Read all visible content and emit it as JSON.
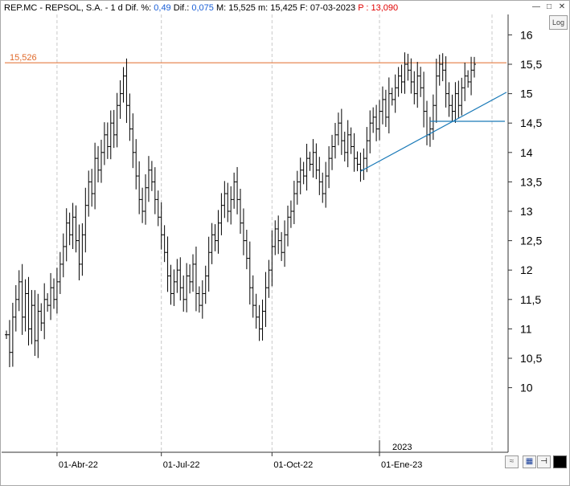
{
  "header": {
    "symbol": "REP.MC - REPSOL, S.A. - 1 d",
    "dif_pct_label": "Dif. %:",
    "dif_pct_value": "0,49",
    "dif_label": "Dif.:",
    "dif_value": "0,075",
    "max_label": "M:",
    "max_value": "15,525",
    "min_label": "m:",
    "min_value": "15,425",
    "date_label": "F:",
    "date_value": "07-03-2023",
    "p_label": "P :",
    "p_value": "13,090"
  },
  "controls": {
    "log_label": "Log",
    "minimize_icon": "minimize-icon",
    "maximize_icon": "maximize-icon",
    "close_icon": "close-icon",
    "restore_icon": "restore-icon",
    "save_icon": "save-icon",
    "pin_icon": "pin-icon",
    "color_icon": "color-swatch-icon"
  },
  "level_label": "15,526",
  "year_marker": "2023",
  "colors": {
    "bars": "#000000",
    "level_line": "#e06a2a",
    "trend_line": "#1a7ab8",
    "header_value": "#1a5fd6",
    "header_p": "#e00000"
  },
  "chart_data": {
    "type": "bar",
    "style": "ohlc",
    "title": "REP.MC - REPSOL, S.A. - 1 d",
    "y_range": [
      9.8,
      16.4
    ],
    "y_ticks": [
      "16",
      "15,5",
      "15",
      "14,5",
      "14",
      "13,5",
      "13",
      "12,5",
      "12",
      "11,5",
      "11",
      "10,5",
      "10"
    ],
    "y_tick_values": [
      16,
      15.5,
      15,
      14.5,
      14,
      13.5,
      13,
      12.5,
      12,
      11.5,
      11,
      10.5,
      10
    ],
    "x_tick_labels": [
      "01-Abr-22",
      "01-Jul-22",
      "01-Oct-22",
      "01-Ene-23"
    ],
    "x_tick_bar_index": [
      16,
      49,
      84,
      118
    ],
    "grid": "vertical-dashed",
    "resistance_level": 15.526,
    "support_segment": {
      "from_bar": 134,
      "to_bar": 154,
      "y": 14.53
    },
    "trendline": {
      "from_bar": 112,
      "from_y": 13.68,
      "to_bar": 155,
      "to_y": 14.75
    },
    "close": [
      10.9,
      10.6,
      11.2,
      11.5,
      11.8,
      11.2,
      11.6,
      11.0,
      11.4,
      10.8,
      11.3,
      11.1,
      11.5,
      11.4,
      11.7,
      11.5,
      11.8,
      12.1,
      12.4,
      12.8,
      12.6,
      12.9,
      12.5,
      12.1,
      12.6,
      13.1,
      13.5,
      13.3,
      13.9,
      13.7,
      14.0,
      14.3,
      14.1,
      14.5,
      14.3,
      14.8,
      15.0,
      15.3,
      14.8,
      14.4,
      14.0,
      13.6,
      13.2,
      13.0,
      13.4,
      13.7,
      13.5,
      13.2,
      12.9,
      12.6,
      12.3,
      11.9,
      11.6,
      11.8,
      12.0,
      11.7,
      11.5,
      11.9,
      11.8,
      12.1,
      11.6,
      11.4,
      11.6,
      11.9,
      12.3,
      12.6,
      12.5,
      12.8,
      13.1,
      13.3,
      13.0,
      13.2,
      13.5,
      13.2,
      12.8,
      12.5,
      12.2,
      11.7,
      11.4,
      11.2,
      11.0,
      11.3,
      11.7,
      12.0,
      12.4,
      12.7,
      12.5,
      12.3,
      12.6,
      12.9,
      13.0,
      13.3,
      13.5,
      13.7,
      13.6,
      13.9,
      13.8,
      14.0,
      13.7,
      13.5,
      13.3,
      13.6,
      13.9,
      14.1,
      14.3,
      14.5,
      14.2,
      14.0,
      14.3,
      14.1,
      13.9,
      13.8,
      13.7,
      13.9,
      14.2,
      14.5,
      14.6,
      14.4,
      14.7,
      14.9,
      14.6,
      15.0,
      14.9,
      15.1,
      15.3,
      15.2,
      15.5,
      15.4,
      15.2,
      15.0,
      15.3,
      15.1,
      14.7,
      14.3,
      14.4,
      14.8,
      15.3,
      15.5,
      15.4,
      15.0,
      14.8,
      14.7,
      15.0,
      14.8,
      15.1,
      15.3,
      15.2,
      15.4,
      15.5
    ]
  }
}
